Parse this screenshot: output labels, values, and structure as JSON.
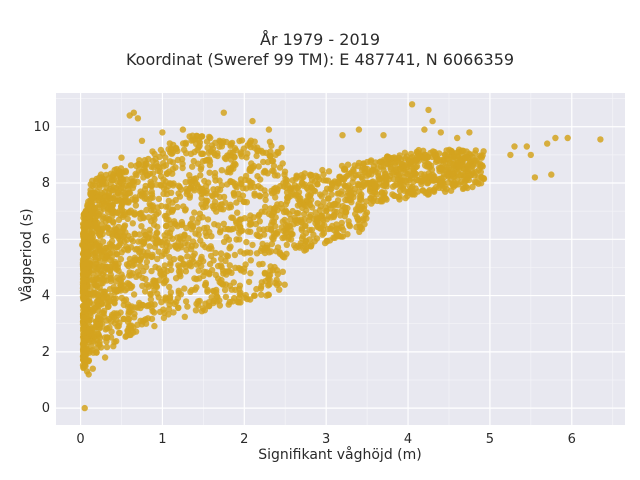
{
  "chart_data": {
    "type": "scatter",
    "title": "År 1979 - 2019",
    "subtitle": "Koordinat (Sweref 99 TM): E 487741, N 6066359",
    "xlabel": "Signifikant våghöjd (m)",
    "ylabel": "Vågperiod (s)",
    "xlim": [
      -0.3,
      6.65
    ],
    "ylim": [
      -0.6,
      11.2
    ],
    "xticks": [
      0,
      1,
      2,
      3,
      4,
      5,
      6
    ],
    "yticks": [
      0,
      2,
      4,
      6,
      8,
      10
    ],
    "grid": true,
    "background": "#e8e8f0",
    "marker_color": "#d4a31f",
    "series": [
      {
        "description": "dense cloud of hourly sea state points",
        "points": [
          [
            0.05,
            0.0
          ],
          [
            0.02,
            5.8
          ],
          [
            0.06,
            1.5
          ],
          [
            0.08,
            1.3
          ],
          [
            0.1,
            1.2
          ],
          [
            0.12,
            7.6
          ],
          [
            0.15,
            7.9
          ],
          [
            0.2,
            7.7
          ],
          [
            0.25,
            8.3
          ],
          [
            0.3,
            8.6
          ],
          [
            0.5,
            8.9
          ],
          [
            0.6,
            10.4
          ],
          [
            0.65,
            10.5
          ],
          [
            0.7,
            10.3
          ],
          [
            0.75,
            9.5
          ],
          [
            1.0,
            9.8
          ],
          [
            1.25,
            9.9
          ],
          [
            1.75,
            10.5
          ],
          [
            2.1,
            10.2
          ],
          [
            2.3,
            9.9
          ],
          [
            3.2,
            9.7
          ],
          [
            3.4,
            9.9
          ],
          [
            3.7,
            9.7
          ],
          [
            4.05,
            10.8
          ],
          [
            4.2,
            9.9
          ],
          [
            4.25,
            10.6
          ],
          [
            4.3,
            10.2
          ],
          [
            4.4,
            9.8
          ],
          [
            4.6,
            9.6
          ],
          [
            4.75,
            9.8
          ],
          [
            5.25,
            9.0
          ],
          [
            5.3,
            9.3
          ],
          [
            5.45,
            9.3
          ],
          [
            5.5,
            9.0
          ],
          [
            5.55,
            8.2
          ],
          [
            5.7,
            9.4
          ],
          [
            5.75,
            8.3
          ],
          [
            5.8,
            9.6
          ],
          [
            5.95,
            9.6
          ],
          [
            6.35,
            9.55
          ],
          [
            4.9,
            8.9
          ],
          [
            4.8,
            8.8
          ],
          [
            4.6,
            8.7
          ],
          [
            4.4,
            8.5
          ],
          [
            4.2,
            8.3
          ],
          [
            3.9,
            8.1
          ],
          [
            3.6,
            7.8
          ],
          [
            3.3,
            7.4
          ],
          [
            3.0,
            7.0
          ],
          [
            2.7,
            6.6
          ],
          [
            2.4,
            6.2
          ],
          [
            2.1,
            5.8
          ],
          [
            1.8,
            5.4
          ],
          [
            1.5,
            4.7
          ],
          [
            1.2,
            4.1
          ],
          [
            0.9,
            3.4
          ],
          [
            0.6,
            2.6
          ],
          [
            0.3,
            1.8
          ],
          [
            0.15,
            1.4
          ],
          [
            1.55,
            4.2
          ],
          [
            0.4,
            2.2
          ],
          [
            0.8,
            3.0
          ],
          [
            1.1,
            3.8
          ],
          [
            2.0,
            5.5
          ],
          [
            2.8,
            6.8
          ]
        ]
      }
    ]
  }
}
